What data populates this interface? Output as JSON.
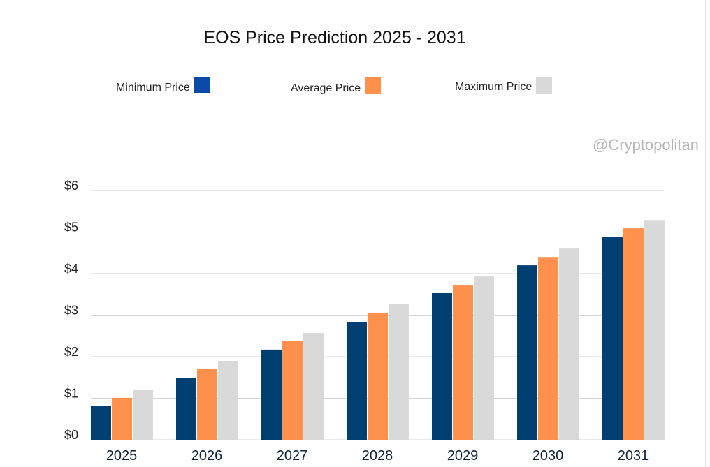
{
  "chart_data": {
    "type": "bar",
    "title": "EOS Price Prediction 2025 - 2031",
    "categories": [
      "2025",
      "2026",
      "2027",
      "2028",
      "2029",
      "2030",
      "2031"
    ],
    "series": [
      {
        "name": "Minimum Price",
        "color": "#003f72",
        "values": [
          0.81,
          1.48,
          2.17,
          2.84,
          3.53,
          4.2,
          4.89
        ]
      },
      {
        "name": "Average Price",
        "color": "#ff914d",
        "values": [
          1.01,
          1.7,
          2.37,
          3.06,
          3.73,
          4.4,
          5.09
        ]
      },
      {
        "name": "Maximum Price",
        "color": "#d9d9d9",
        "values": [
          1.21,
          1.9,
          2.57,
          3.26,
          3.93,
          4.62,
          5.29
        ]
      }
    ],
    "yticks": [
      "$0",
      "$1",
      "$2",
      "$3",
      "$4",
      "$5",
      "$6"
    ],
    "ylim": [
      0,
      6
    ],
    "xlabel": "",
    "ylabel": "",
    "grid": true,
    "legend_placement": "top",
    "legend_swatch_colors": [
      "#0b4aa8",
      "#ff914d",
      "#d9d9d9"
    ]
  },
  "watermark": "@Cryptopolitan"
}
